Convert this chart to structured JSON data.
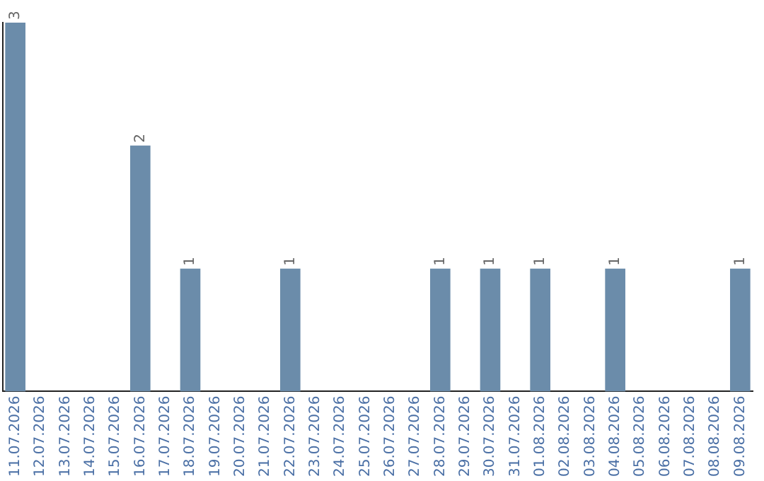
{
  "chart_data": {
    "type": "bar",
    "categories": [
      "11.07.2026",
      "12.07.2026",
      "13.07.2026",
      "14.07.2026",
      "15.07.2026",
      "16.07.2026",
      "17.07.2026",
      "18.07.2026",
      "19.07.2026",
      "20.07.2026",
      "21.07.2026",
      "22.07.2026",
      "23.07.2026",
      "24.07.2026",
      "25.07.2026",
      "26.07.2026",
      "27.07.2026",
      "28.07.2026",
      "29.07.2026",
      "30.07.2026",
      "31.07.2026",
      "01.08.2026",
      "02.08.2026",
      "03.08.2026",
      "04.08.2026",
      "05.08.2026",
      "06.08.2026",
      "07.08.2026",
      "08.08.2026",
      "09.08.2026"
    ],
    "values": [
      3,
      0,
      0,
      0,
      0,
      2,
      0,
      1,
      0,
      0,
      0,
      1,
      0,
      0,
      0,
      0,
      0,
      1,
      0,
      1,
      0,
      1,
      0,
      0,
      1,
      0,
      0,
      0,
      0,
      1
    ],
    "value_labels": [
      "3",
      null,
      null,
      null,
      null,
      "2",
      null,
      "1",
      null,
      null,
      null,
      "1",
      null,
      null,
      null,
      null,
      null,
      "1",
      null,
      "1",
      null,
      "1",
      null,
      null,
      "1",
      null,
      null,
      null,
      null,
      "1"
    ],
    "color": "#6b8caa",
    "grid": false,
    "legend": false,
    "tick_labels": "x"
  }
}
